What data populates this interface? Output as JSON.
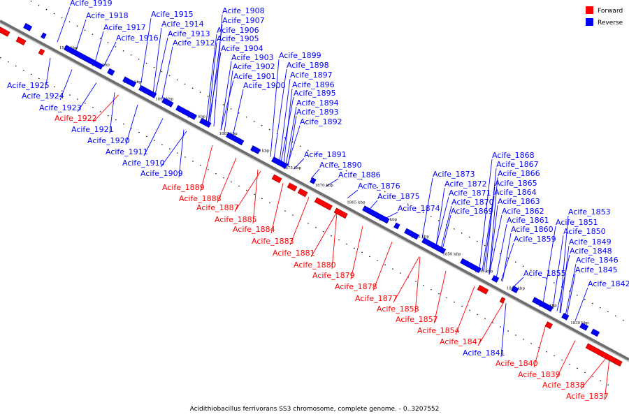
{
  "caption": "Acidithiobacillus ferrivorans SS3 chromosome, complete genome. - 0..3207552",
  "legend": [
    {
      "label": "Forward",
      "color": "#ff0000"
    },
    {
      "label": "Reverse",
      "color": "#0000ff"
    }
  ],
  "colors": {
    "forward": "#ff0000",
    "reverse": "#0000ff",
    "backbone": "#666666"
  },
  "kbp_ticks": [
    "1910 kbp",
    "1905 kbp",
    "1900 kbp",
    "1895 kbp",
    "1890 kbp",
    "1885 kbp",
    "1880 kbp",
    "1875 kbp",
    "1870 kbp",
    "1865 kbp",
    "1860 kbp",
    "1855 kbp",
    "1850 kbp",
    "1845 kbp",
    "1840 kbp",
    "1835 kbp",
    "1830 kbp"
  ],
  "reverse_upper": [
    "Acife_1919",
    "Acife_1918",
    "Acife_1917",
    "Acife_1916",
    "Acife_1915",
    "Acife_1914",
    "Acife_1913",
    "Acife_1912",
    "Acife_1908",
    "Acife_1907",
    "Acife_1906",
    "Acife_1905",
    "Acife_1904",
    "Acife_1903",
    "Acife_1902",
    "Acife_1901",
    "Acife_1900",
    "Acife_1899",
    "Acife_1898",
    "Acife_1897",
    "Acife_1896",
    "Acife_1895",
    "Acife_1894",
    "Acife_1893",
    "Acife_1892",
    "Acife_1891",
    "Acife_1890",
    "Acife_1886",
    "Acife_1876",
    "Acife_1875",
    "Acife_1874",
    "Acife_1873",
    "Acife_1872",
    "Acife_1871",
    "Acife_1870",
    "Acife_1869",
    "Acife_1868",
    "Acife_1867",
    "Acife_1866",
    "Acife_1865",
    "Acife_1864",
    "Acife_1863",
    "Acife_1862",
    "Acife_1861",
    "Acife_1860",
    "Acife_1859",
    "Acife_1855",
    "Acife_1853",
    "Acife_1851",
    "Acife_1850",
    "Acife_1849",
    "Acife_1848",
    "Acife_1846",
    "Acife_1845",
    "Acife_1842"
  ],
  "left_labels": [
    {
      "name": "Acife_1925",
      "strand": "reverse"
    },
    {
      "name": "Acife_1924",
      "strand": "reverse"
    },
    {
      "name": "Acife_1923",
      "strand": "reverse"
    },
    {
      "name": "Acife_1922",
      "strand": "forward"
    },
    {
      "name": "Acife_1921",
      "strand": "reverse"
    },
    {
      "name": "Acife_1920",
      "strand": "reverse"
    },
    {
      "name": "Acife_1911",
      "strand": "reverse"
    },
    {
      "name": "Acife_1910",
      "strand": "reverse"
    },
    {
      "name": "Acife_1909",
      "strand": "reverse"
    },
    {
      "name": "Acife_1889",
      "strand": "forward"
    },
    {
      "name": "Acife_1888",
      "strand": "forward"
    },
    {
      "name": "Acife_1887",
      "strand": "forward"
    },
    {
      "name": "Acife_1885",
      "strand": "forward"
    },
    {
      "name": "Acife_1884",
      "strand": "forward"
    },
    {
      "name": "Acife_1883",
      "strand": "forward"
    },
    {
      "name": "Acife_1881",
      "strand": "forward"
    },
    {
      "name": "Acife_1880",
      "strand": "forward"
    },
    {
      "name": "Acife_1879",
      "strand": "forward"
    },
    {
      "name": "Acife_1878",
      "strand": "forward"
    },
    {
      "name": "Acife_1877",
      "strand": "forward"
    },
    {
      "name": "Acife_1858",
      "strand": "forward"
    },
    {
      "name": "Acife_1857",
      "strand": "forward"
    },
    {
      "name": "Acife_1854",
      "strand": "forward"
    },
    {
      "name": "Acife_1847",
      "strand": "forward"
    },
    {
      "name": "Acife_1841",
      "strand": "reverse"
    },
    {
      "name": "Acife_1840",
      "strand": "forward"
    },
    {
      "name": "Acife_1839",
      "strand": "forward"
    },
    {
      "name": "Acife_1838",
      "strand": "forward"
    },
    {
      "name": "Acife_1837",
      "strand": "forward"
    }
  ]
}
